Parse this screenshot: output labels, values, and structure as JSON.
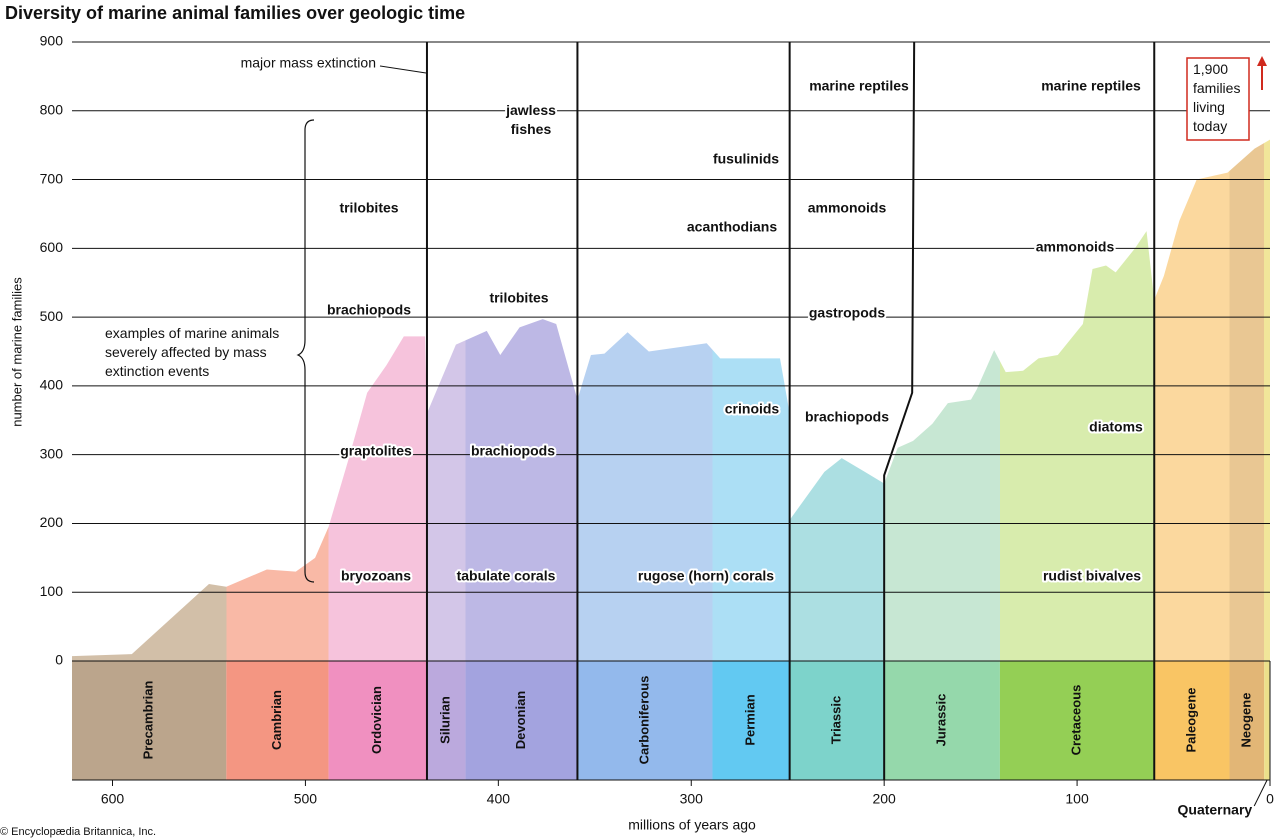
{
  "chart_data": {
    "type": "area",
    "title": "Diversity of marine animal families over geologic time",
    "x_label": "millions of years ago",
    "y_label": "number of marine families",
    "credit": "© Encyclopædia Britannica, Inc.",
    "x": [
      621,
      590,
      550,
      541,
      520,
      505,
      495,
      488,
      478,
      468,
      458,
      449,
      438,
      437,
      422,
      406,
      399,
      389,
      377,
      370,
      359,
      352,
      345,
      333,
      322,
      292,
      285,
      254,
      249,
      249,
      231,
      222,
      210,
      200,
      193,
      185,
      175,
      167,
      155,
      152,
      143,
      137,
      128,
      120,
      110,
      97,
      92,
      85,
      80,
      70,
      64,
      60,
      55,
      47,
      38,
      22,
      8,
      0
    ],
    "values": [
      7,
      10,
      112,
      108,
      133,
      130,
      150,
      195,
      290,
      390,
      430,
      472,
      472,
      360,
      460,
      480,
      445,
      485,
      497,
      490,
      380,
      445,
      447,
      478,
      450,
      462,
      440,
      440,
      360,
      205,
      275,
      295,
      275,
      258,
      310,
      320,
      345,
      375,
      380,
      395,
      452,
      420,
      422,
      440,
      445,
      490,
      570,
      575,
      565,
      600,
      625,
      525,
      560,
      640,
      700,
      710,
      745,
      758
    ],
    "xlim": [
      621,
      0
    ],
    "ylim": [
      0,
      900
    ],
    "xticks": [
      600,
      500,
      400,
      300,
      200,
      100,
      0
    ],
    "yticks": [
      0,
      100,
      200,
      300,
      400,
      500,
      600,
      700,
      800,
      900
    ],
    "grid": true,
    "periods": [
      {
        "name": "Precambrian",
        "start": 621,
        "end": 541,
        "color": "#d2bfa8",
        "band_color": "#bba58c"
      },
      {
        "name": "Cambrian",
        "start": 541,
        "end": 488,
        "color": "#f9b9a6",
        "band_color": "#f49682"
      },
      {
        "name": "Ordovician",
        "start": 488,
        "end": 437,
        "color": "#f6c3dc",
        "band_color": "#f090c0"
      },
      {
        "name": "Silurian",
        "start": 437,
        "end": 417,
        "color": "#d3c6e8",
        "band_color": "#bba9dd"
      },
      {
        "name": "Devonian",
        "start": 417,
        "end": 359,
        "color": "#bdb8e5",
        "band_color": "#a3a3df"
      },
      {
        "name": "Carboniferous",
        "start": 359,
        "end": 289,
        "color": "#b7d1f1",
        "band_color": "#93b9ec"
      },
      {
        "name": "Permian",
        "start": 289,
        "end": 249,
        "color": "#acdff5",
        "band_color": "#62c9f2"
      },
      {
        "name": "Triassic",
        "start": 249,
        "end": 200,
        "color": "#acdfe2",
        "band_color": "#7dd3cb"
      },
      {
        "name": "Jurassic",
        "start": 200,
        "end": 140,
        "color": "#c7e7d3",
        "band_color": "#95d8ab"
      },
      {
        "name": "Cretaceous",
        "start": 140,
        "end": 60,
        "color": "#d8ecad",
        "band_color": "#94cf55"
      },
      {
        "name": "Paleogene",
        "start": 60,
        "end": 21,
        "color": "#fbd89e",
        "band_color": "#f9c564"
      },
      {
        "name": "Neogene",
        "start": 21,
        "end": 3,
        "color": "#e9c793",
        "band_color": "#e2b676"
      },
      {
        "name": "Quaternary",
        "start": 3,
        "end": 0,
        "color": "#f1e69a",
        "band_color": "#ece08a"
      }
    ],
    "mass_extinctions": [
      437,
      359,
      249,
      200,
      60
    ],
    "annotations": [
      {
        "text": "major mass extinction"
      },
      {
        "lines": [
          "jawless",
          "fishes"
        ]
      },
      {
        "text": "trilobites"
      },
      {
        "text": "brachiopods"
      },
      {
        "text": "graptolites"
      },
      {
        "text": "bryozoans"
      },
      {
        "text": "trilobites"
      },
      {
        "text": "brachiopods"
      },
      {
        "text": "tabulate corals"
      },
      {
        "text": "fusulinids"
      },
      {
        "text": "acanthodians"
      },
      {
        "text": "crinoids"
      },
      {
        "text": "rugose (horn) corals"
      },
      {
        "text": "marine reptiles"
      },
      {
        "text": "ammonoids"
      },
      {
        "text": "gastropods"
      },
      {
        "text": "brachiopods"
      },
      {
        "text": "marine reptiles"
      },
      {
        "text": "ammonoids"
      },
      {
        "text": "diatoms"
      },
      {
        "text": "rudist bivalves"
      },
      {
        "lines": [
          "examples of marine animals",
          "severely affected by mass",
          "extinction events"
        ]
      },
      {
        "lines": [
          "1,900",
          "families",
          "living",
          "today"
        ]
      }
    ]
  }
}
